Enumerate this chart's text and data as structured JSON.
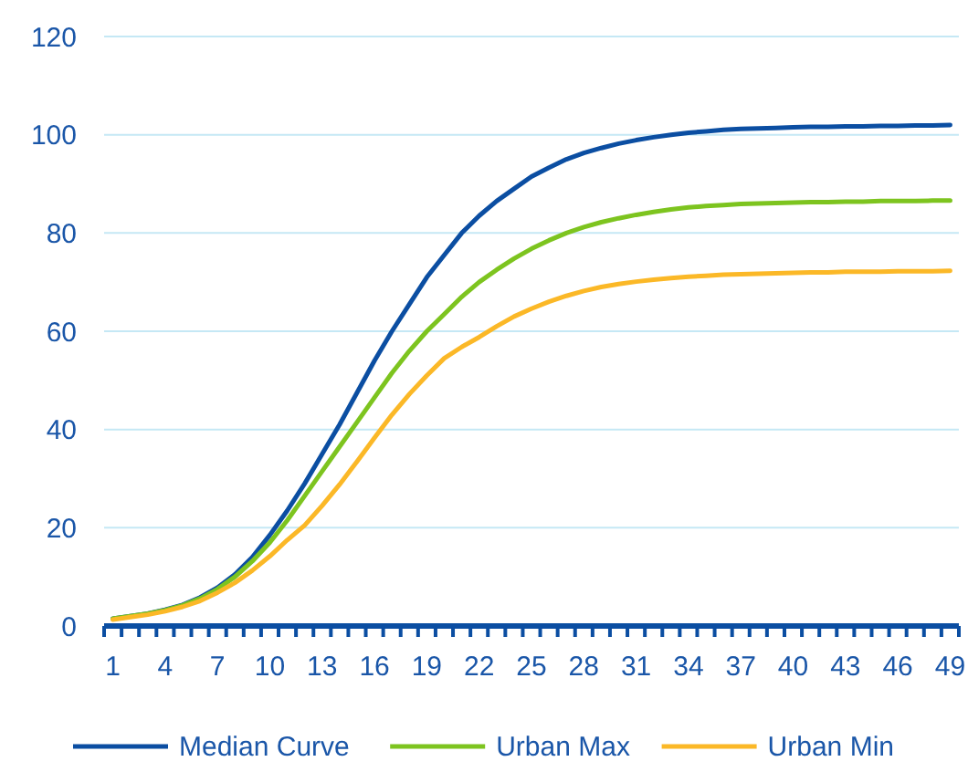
{
  "chart_data": {
    "type": "line",
    "categories": [
      "1",
      null,
      null,
      "4",
      null,
      null,
      "7",
      null,
      null,
      "10",
      null,
      null,
      "13",
      null,
      null,
      "16",
      null,
      null,
      "19",
      null,
      null,
      "22",
      null,
      null,
      "25",
      null,
      null,
      "28",
      null,
      null,
      "31",
      null,
      null,
      "34",
      null,
      null,
      "37",
      null,
      null,
      "40",
      null,
      null,
      "43",
      null,
      null,
      "46",
      null,
      null,
      "49"
    ],
    "series": [
      {
        "name": "Median Curve",
        "color": "#0b4ea2",
        "values": [
          1.5,
          2,
          2.5,
          3.3,
          4.3,
          5.8,
          7.8,
          10.5,
          14,
          18.5,
          23.5,
          29,
          35,
          41,
          47.5,
          54,
          60,
          65.5,
          71,
          75.5,
          80,
          83.5,
          86.5,
          89,
          91.5,
          93.3,
          95,
          96.3,
          97.3,
          98.2,
          98.9,
          99.5,
          100,
          100.4,
          100.7,
          101,
          101.2,
          101.3,
          101.4,
          101.5,
          101.6,
          101.6,
          101.7,
          101.7,
          101.8,
          101.8,
          101.9,
          101.9,
          102
        ]
      },
      {
        "name": "Urban Max",
        "color": "#7dc41f",
        "values": [
          1.5,
          2,
          2.5,
          3.2,
          4.2,
          5.6,
          7.5,
          10,
          13.2,
          17,
          21.5,
          26.5,
          31.5,
          36.5,
          41.5,
          46.5,
          51.5,
          56,
          60,
          63.5,
          67,
          70,
          72.5,
          74.8,
          76.8,
          78.5,
          80,
          81.2,
          82.2,
          83,
          83.7,
          84.3,
          84.8,
          85.2,
          85.5,
          85.7,
          85.9,
          86,
          86.1,
          86.2,
          86.3,
          86.3,
          86.4,
          86.4,
          86.5,
          86.5,
          86.5,
          86.6,
          86.6
        ]
      },
      {
        "name": "Urban Min",
        "color": "#fbb827",
        "values": [
          1.3,
          1.8,
          2.3,
          3,
          3.9,
          5.1,
          6.8,
          8.8,
          11.3,
          14.2,
          17.5,
          20.5,
          24.5,
          28.8,
          33.5,
          38.3,
          43,
          47.2,
          51,
          54.5,
          56.8,
          58.8,
          61,
          63,
          64.6,
          66,
          67.2,
          68.2,
          69,
          69.6,
          70.1,
          70.5,
          70.8,
          71.1,
          71.3,
          71.5,
          71.6,
          71.7,
          71.8,
          71.9,
          72,
          72,
          72.1,
          72.1,
          72.1,
          72.2,
          72.2,
          72.2,
          72.3
        ]
      }
    ],
    "ylim": [
      0,
      120
    ],
    "yticks": [
      0,
      20,
      40,
      60,
      80,
      100,
      120
    ],
    "grid": "y",
    "legend": "bottom",
    "marker": "none",
    "line_style": "solid"
  }
}
